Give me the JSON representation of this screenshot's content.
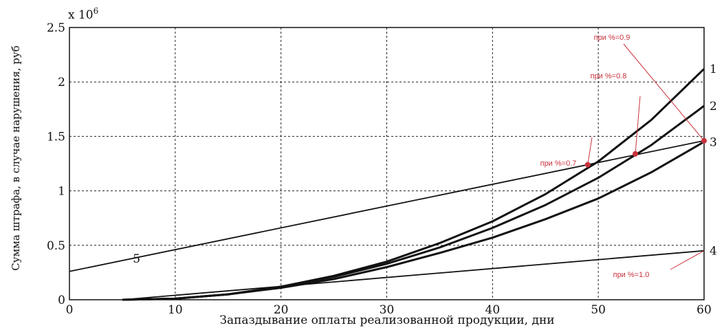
{
  "chart_data": {
    "type": "line",
    "xlabel": "Запаздывание оплаты реализованной продукции, дни",
    "ylabel": "Сумма штрафа, в случае нарушения, руб",
    "multiplier_label": "x 10",
    "multiplier_exp": "6",
    "xlim": [
      0,
      60
    ],
    "ylim": [
      0,
      2.5
    ],
    "x_ticks": [
      "0",
      "10",
      "20",
      "30",
      "40",
      "50",
      "60"
    ],
    "y_ticks": [
      "0",
      "0.5",
      "1",
      "1.5",
      "2",
      "2.5"
    ],
    "grid": true,
    "accent_color": "#c8323c",
    "series": [
      {
        "label": "1",
        "x": [
          5,
          10,
          15,
          20,
          25,
          30,
          35,
          40,
          45,
          50,
          55,
          60
        ],
        "y": [
          0,
          0.01,
          0.05,
          0.12,
          0.22,
          0.35,
          0.52,
          0.72,
          0.97,
          1.27,
          1.65,
          2.12
        ]
      },
      {
        "label": "2",
        "x": [
          5,
          10,
          15,
          20,
          25,
          30,
          35,
          40,
          45,
          50,
          55,
          60
        ],
        "y": [
          0,
          0.01,
          0.05,
          0.12,
          0.21,
          0.33,
          0.48,
          0.66,
          0.87,
          1.12,
          1.42,
          1.78
        ]
      },
      {
        "label": "3",
        "x": [
          5,
          10,
          15,
          20,
          25,
          30,
          35,
          40,
          45,
          50,
          55,
          60
        ],
        "y": [
          0,
          0.01,
          0.05,
          0.11,
          0.19,
          0.3,
          0.43,
          0.57,
          0.74,
          0.93,
          1.17,
          1.45
        ]
      },
      {
        "label": "4",
        "x": [
          5,
          60
        ],
        "y": [
          0,
          0.45
        ]
      },
      {
        "label": "5",
        "x": [
          0,
          60
        ],
        "y": [
          0.26,
          1.46
        ]
      }
    ],
    "annotations": [
      {
        "text": "при %=0.9",
        "point": [
          60,
          1.46
        ]
      },
      {
        "text": "при %=0.8",
        "point": [
          53.5,
          1.34
        ]
      },
      {
        "text": "при %=0.7",
        "point": [
          49,
          1.24
        ]
      },
      {
        "text": "при %=1.0",
        "point": [
          60,
          0.45
        ]
      }
    ]
  }
}
